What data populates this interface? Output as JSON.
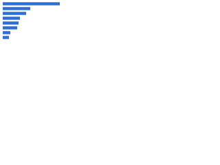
{
  "chart_data": {
    "type": "bar",
    "orientation": "horizontal",
    "categories": [
      null,
      null,
      null,
      null,
      null,
      null,
      null,
      null
    ],
    "values": [
      83,
      40,
      34,
      25,
      23,
      21,
      11,
      9
    ],
    "color": "#2f6ed3",
    "xlim": [
      0,
      90
    ]
  }
}
